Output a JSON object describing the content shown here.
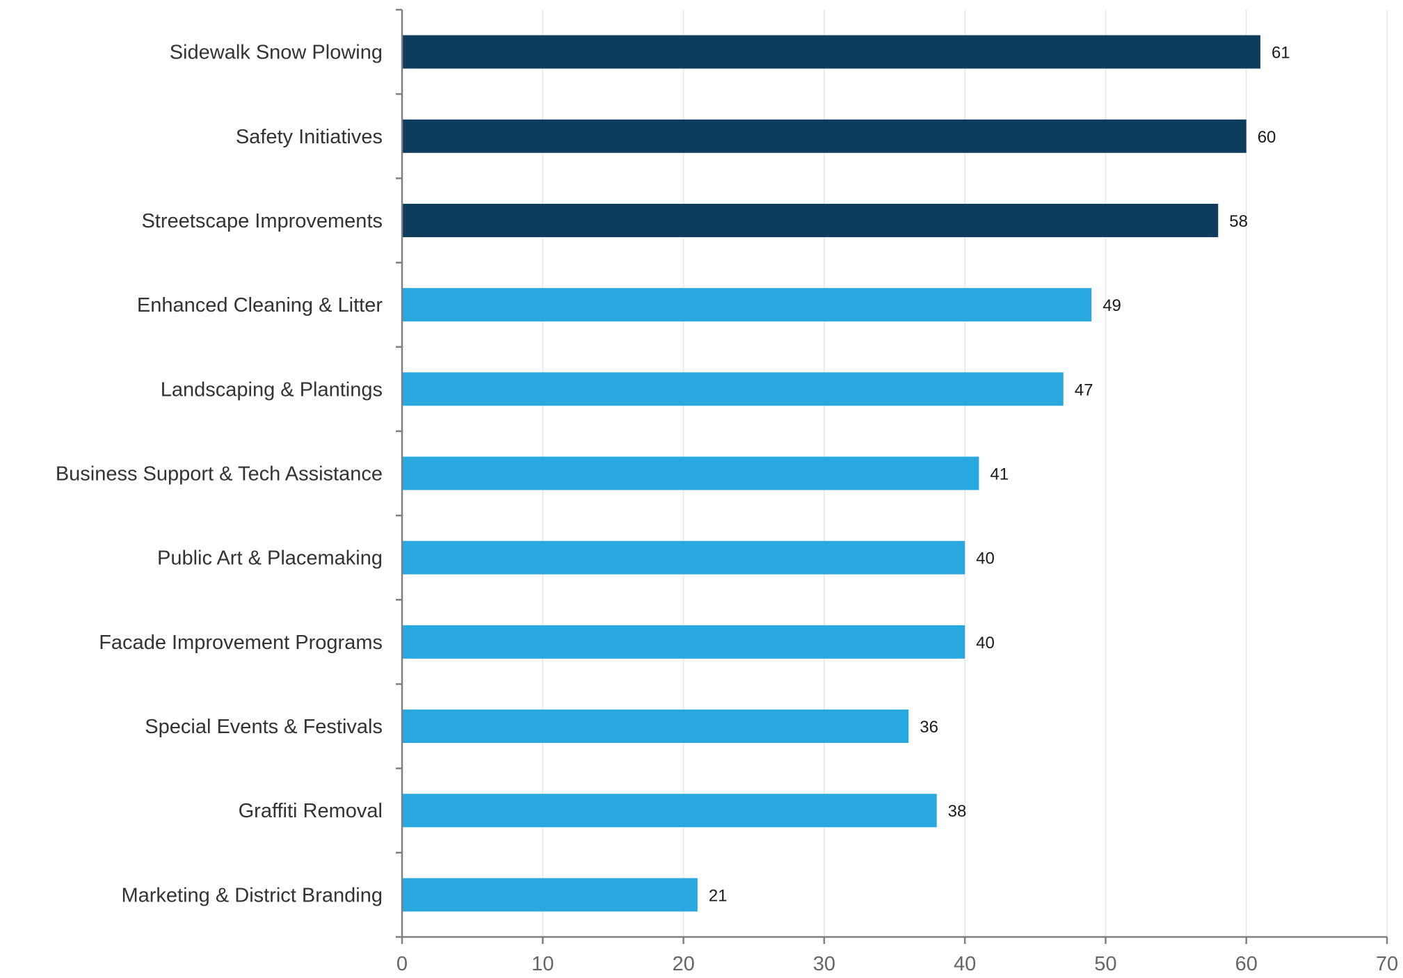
{
  "chart_data": {
    "type": "bar",
    "orientation": "horizontal",
    "categories": [
      "Sidewalk Snow Plowing",
      "Safety Initiatives",
      "Streetscape Improvements",
      "Enhanced Cleaning & Litter",
      "Landscaping & Plantings",
      "Business Support & Tech Assistance",
      "Public Art & Placemaking",
      "Facade Improvement Programs",
      "Special Events & Festivals",
      "Graffiti Removal",
      "Marketing & District Branding"
    ],
    "values": [
      61,
      60,
      58,
      49,
      47,
      41,
      40,
      40,
      36,
      38,
      21
    ],
    "data_labels": [
      "61",
      "60",
      "58",
      "49",
      "47",
      "41",
      "40",
      "40",
      "36",
      "38",
      "21"
    ],
    "bar_colors": [
      "#0d3c5c",
      "#0d3c5c",
      "#0d3c5c",
      "#29a8e0",
      "#29a8e0",
      "#29a8e0",
      "#29a8e0",
      "#29a8e0",
      "#29a8e0",
      "#29a8e0",
      "#29a8e0"
    ],
    "xlim": [
      0,
      70
    ],
    "x_ticks": [
      0,
      10,
      20,
      30,
      40,
      50,
      60,
      70
    ],
    "x_tick_labels": [
      "0",
      "10",
      "20",
      "30",
      "40",
      "50",
      "60",
      "70"
    ],
    "grid": "vertical",
    "legend": "none",
    "title": "",
    "xlabel": "",
    "ylabel": ""
  }
}
